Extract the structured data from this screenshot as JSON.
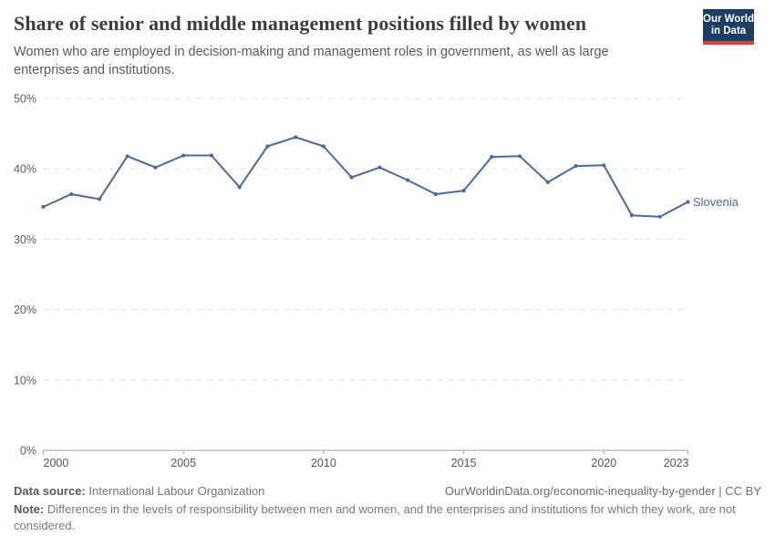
{
  "header": {
    "title": "Share of senior and middle management positions filled by women",
    "subtitle": "Women who are employed in decision-making and management roles in government, as well as large enterprises and institutions.",
    "logo_line1": "Our World",
    "logo_line2": "in Data",
    "logo_bg_color": "#1d3d63",
    "logo_accent_color": "#dc3e32"
  },
  "chart_data": {
    "type": "line",
    "title": "Share of senior and middle management positions filled by women",
    "x": [
      2000,
      2001,
      2002,
      2003,
      2004,
      2005,
      2006,
      2007,
      2008,
      2009,
      2010,
      2011,
      2012,
      2013,
      2014,
      2015,
      2016,
      2017,
      2018,
      2019,
      2020,
      2021,
      2022,
      2023
    ],
    "series": [
      {
        "name": "Slovenia",
        "color": "#4c6a9c",
        "values": [
          34.6,
          36.4,
          35.7,
          41.8,
          40.2,
          41.9,
          41.9,
          37.4,
          43.2,
          44.5,
          43.2,
          38.8,
          40.2,
          38.4,
          36.4,
          36.9,
          41.7,
          41.8,
          38.1,
          40.4,
          40.5,
          33.4,
          33.2,
          35.3
        ]
      }
    ],
    "xlabel": "",
    "ylabel": "",
    "ylim": [
      0,
      50
    ],
    "yticks": [
      0,
      10,
      20,
      30,
      40,
      50
    ],
    "ytick_suffix": "%",
    "xticks": [
      2000,
      2005,
      2010,
      2015,
      2020,
      2023
    ],
    "grid": true,
    "legend": "end-of-line-label"
  },
  "footer": {
    "datasource_label": "Data source:",
    "datasource": "International Labour Organization",
    "attribution": "OurWorldinData.org/economic-inequality-by-gender | CC BY",
    "note_label": "Note:",
    "note": "Differences in the levels of responsibility between men and women, and the enterprises and institutions for which they work, are not considered."
  }
}
